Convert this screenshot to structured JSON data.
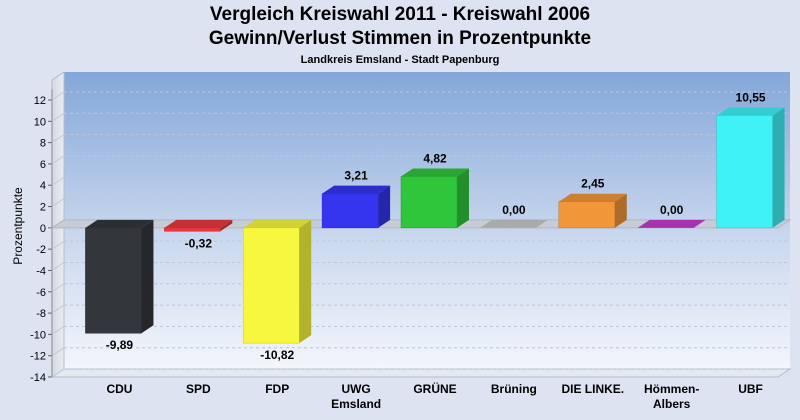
{
  "chart_data": {
    "type": "bar",
    "title": "Vergleich Kreiswahl 2011 - Kreiswahl 2006",
    "subtitle": "Gewinn/Verlust Stimmen in Prozentpunkte",
    "subtitle2": "Landkreis Emsland - Stadt Papenburg",
    "xlabel": "",
    "ylabel": "Prozentpunkte",
    "ylim": [
      -14,
      13
    ],
    "yticks": [
      12,
      10,
      8,
      6,
      4,
      2,
      0,
      -2,
      -4,
      -6,
      -8,
      -10,
      -12,
      -14
    ],
    "categories": [
      [
        "CDU"
      ],
      [
        "SPD"
      ],
      [
        "FDP"
      ],
      [
        "UWG",
        "Emsland"
      ],
      [
        "GRÜNE"
      ],
      [
        "Brüning"
      ],
      [
        "DIE LINKE."
      ],
      [
        "Hömmen-",
        "Albers"
      ],
      [
        "UBF"
      ]
    ],
    "values": [
      -9.89,
      -0.32,
      -10.82,
      3.21,
      4.82,
      0.0,
      2.45,
      0.0,
      10.55
    ],
    "value_labels": [
      "-9,89",
      "-0,32",
      "-10,82",
      "3,21",
      "4,82",
      "0,00",
      "2,45",
      "0,00",
      "10,55"
    ],
    "colors": [
      "#33363b",
      "#e8383d",
      "#f7f73e",
      "#3535f0",
      "#2fc63b",
      "#c8c8c8",
      "#f2963a",
      "#c63bcc",
      "#3ef2f5"
    ],
    "grid": true,
    "legend": "none"
  }
}
